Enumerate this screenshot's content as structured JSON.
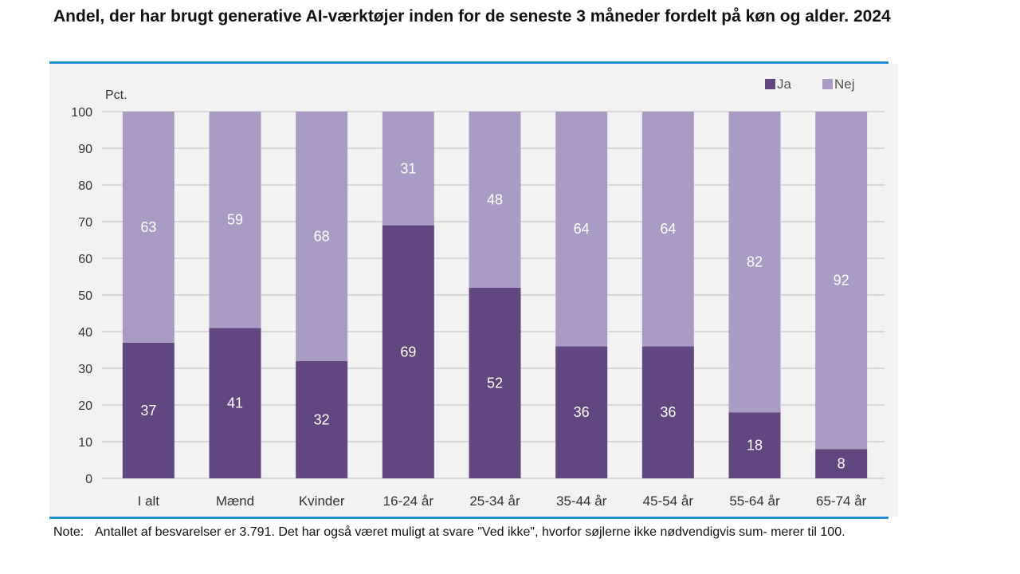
{
  "title": "Andel, der har brugt generative AI-værktøjer inden for de seneste 3 måneder fordelt på køn og alder. 2024",
  "note": {
    "label": "Note:",
    "text": "Antallet af besvarelser er 3.791. Det har også været muligt at svare \"Ved ikke\", hvorfor søjlerne ikke nødvendigvis sum- merer til 100."
  },
  "colors": {
    "ja": "#62467f",
    "nej": "#a99bc4",
    "accent_rule": "#1f8fd0",
    "grid": "#c8c8c8",
    "label_light": "#ffffff"
  },
  "chart_data": {
    "type": "bar",
    "stacked": true,
    "ylabel": "Pct.",
    "ylim": [
      0,
      100
    ],
    "yticks": [
      0,
      10,
      20,
      30,
      40,
      50,
      60,
      70,
      80,
      90,
      100
    ],
    "grid": true,
    "legend_position": "top-right",
    "categories": [
      "I alt",
      "Mænd",
      "Kvinder",
      "16-24 år",
      "25-34 år",
      "35-44 år",
      "45-54 år",
      "55-64 år",
      "65-74 år"
    ],
    "series": [
      {
        "name": "Ja",
        "values": [
          37,
          41,
          32,
          69,
          52,
          36,
          36,
          18,
          8
        ]
      },
      {
        "name": "Nej",
        "values": [
          63,
          59,
          68,
          31,
          48,
          64,
          64,
          82,
          92
        ]
      }
    ]
  }
}
